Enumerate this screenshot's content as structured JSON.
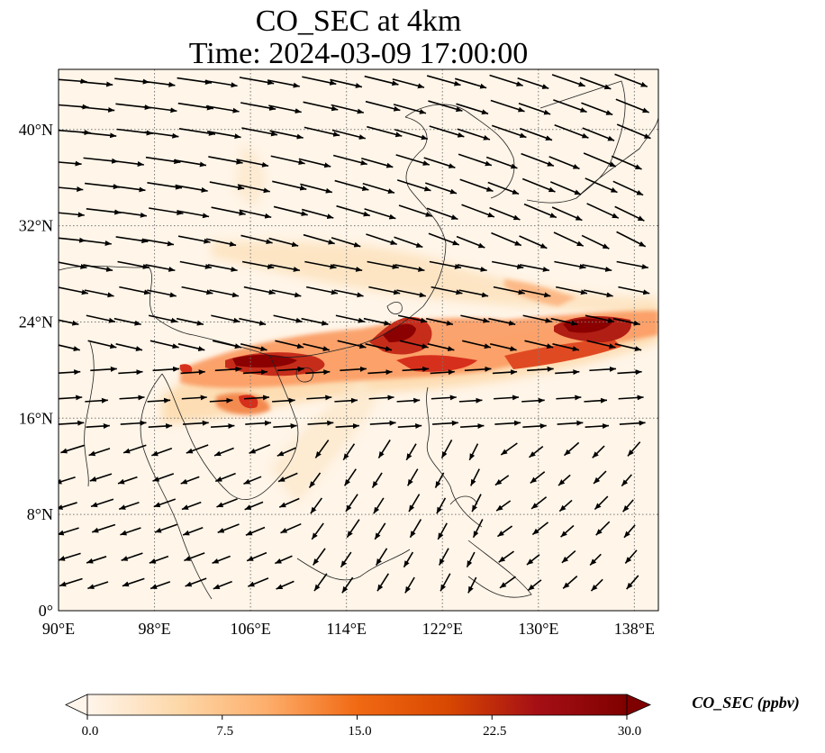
{
  "title_line1": "CO_SEC at 4km",
  "title_line2": "Time: 2024-03-09 17:00:00",
  "map": {
    "lon_range": [
      90,
      140
    ],
    "lat_range": [
      0,
      45
    ],
    "lon_ticks": [
      {
        "value": 90,
        "label": "90°E"
      },
      {
        "value": 98,
        "label": "98°E"
      },
      {
        "value": 106,
        "label": "106°E"
      },
      {
        "value": 114,
        "label": "114°E"
      },
      {
        "value": 122,
        "label": "122°E"
      },
      {
        "value": 130,
        "label": "130°E"
      },
      {
        "value": 138,
        "label": "138°E"
      }
    ],
    "lat_ticks": [
      {
        "value": 0,
        "label": "0°"
      },
      {
        "value": 8,
        "label": "8°N"
      },
      {
        "value": 16,
        "label": "16°N"
      },
      {
        "value": 24,
        "label": "24°N"
      },
      {
        "value": 32,
        "label": "32°N"
      },
      {
        "value": 40,
        "label": "40°N"
      }
    ],
    "gridlines": true,
    "background_color": "#fff5e8",
    "plume_colors": [
      "#fdd9aa",
      "#fb8f55",
      "#d6301c",
      "#8b0000"
    ]
  },
  "colorbar": {
    "label": "CO_SEC (ppbv)",
    "min": 0,
    "max": 30,
    "extend": "both",
    "ticks": [
      {
        "value": 0,
        "label": "0.0"
      },
      {
        "value": 7.5,
        "label": "7.5"
      },
      {
        "value": 15,
        "label": "15.0"
      },
      {
        "value": 22.5,
        "label": "22.5"
      },
      {
        "value": 30,
        "label": "30.0"
      }
    ],
    "colors": [
      "#fff5eb",
      "#fdd8aa",
      "#fdae6b",
      "#f16913",
      "#d94801",
      "#a50f15",
      "#7f0000"
    ]
  }
}
